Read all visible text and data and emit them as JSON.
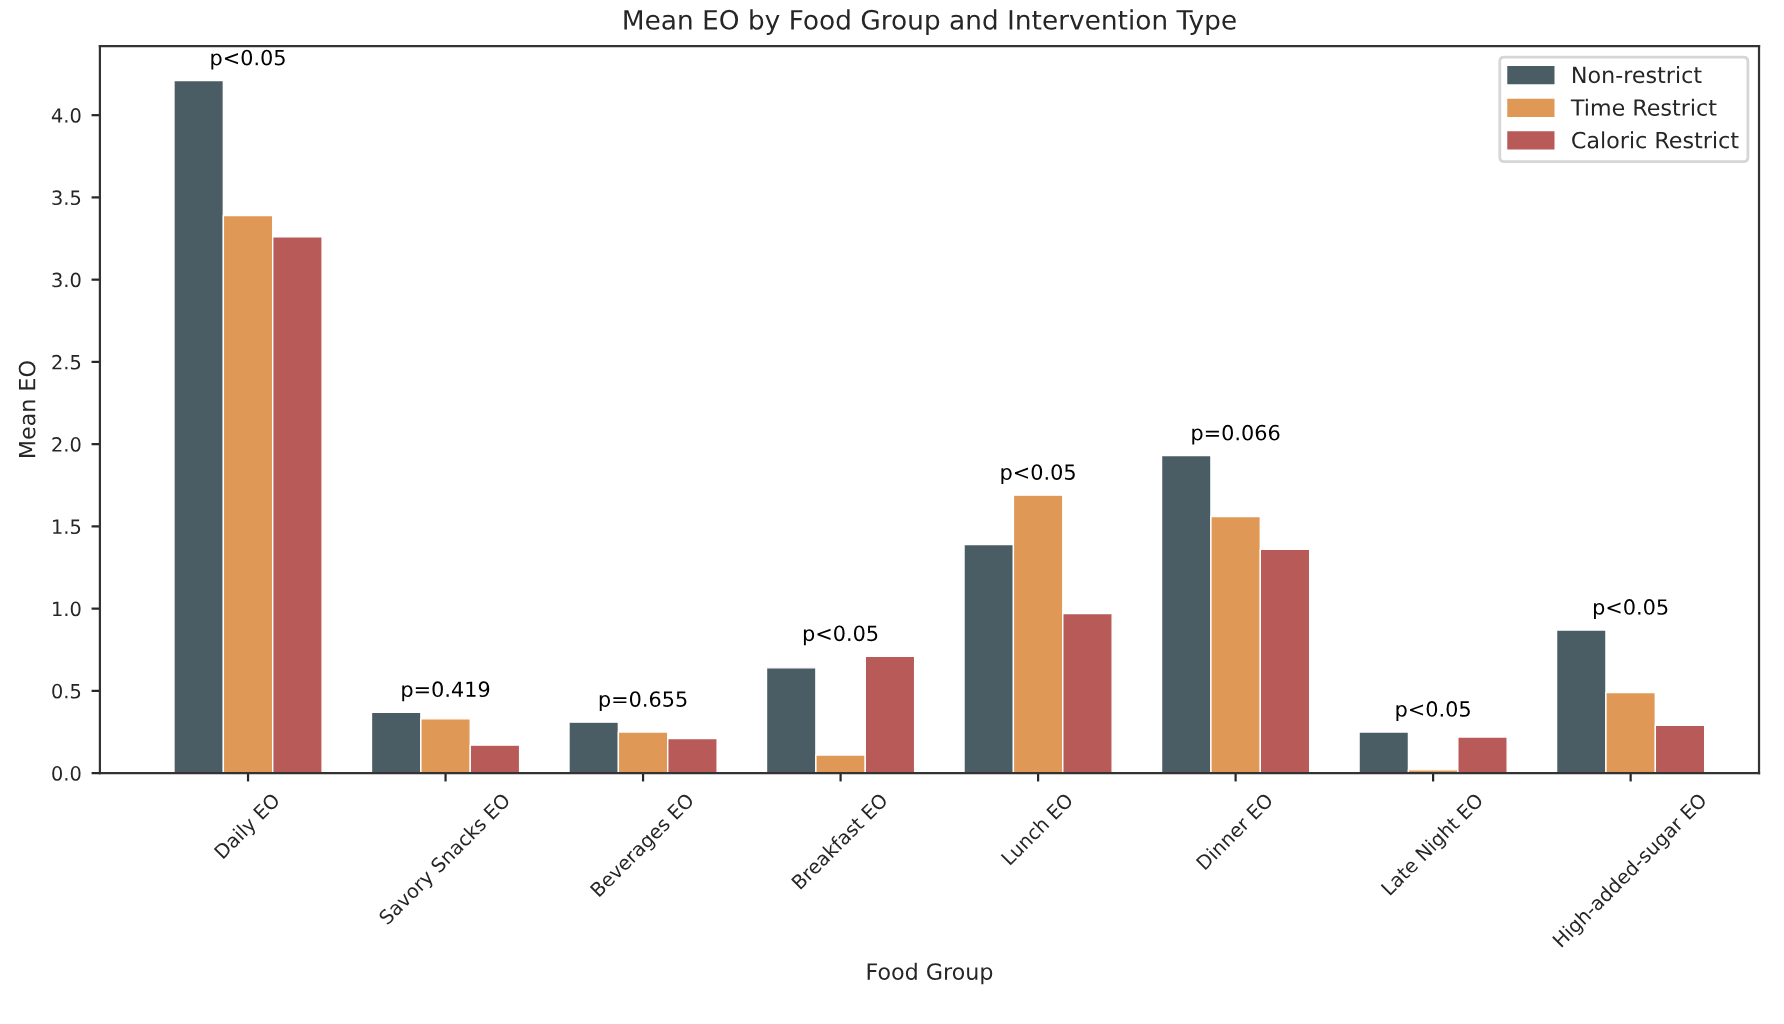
{
  "chart_data": {
    "type": "bar",
    "title": "Mean EO by Food Group and Intervention Type",
    "xlabel": "Food Group",
    "ylabel": "Mean EO",
    "categories": [
      "Daily EO",
      "Savory Snacks EO",
      "Beverages EO",
      "Breakfast EO",
      "Lunch EO",
      "Dinner EO",
      "Late Night EO",
      "High-added-sugar EO"
    ],
    "series": [
      {
        "name": "Non-restrict",
        "color": "#4a5d65",
        "values": [
          4.21,
          0.37,
          0.31,
          0.64,
          1.39,
          1.93,
          0.25,
          0.87
        ]
      },
      {
        "name": "Time Restrict",
        "color": "#e09856",
        "values": [
          3.39,
          0.33,
          0.25,
          0.11,
          1.69,
          1.56,
          0.02,
          0.49
        ]
      },
      {
        "name": "Caloric Restrict",
        "color": "#b85a58",
        "values": [
          3.26,
          0.17,
          0.21,
          0.71,
          0.97,
          1.36,
          0.22,
          0.29
        ]
      }
    ],
    "annotations": [
      "p<0.05",
      "p=0.419",
      "p=0.655",
      "p<0.05",
      "p<0.05",
      "p=0.066",
      "p<0.05",
      "p<0.05"
    ],
    "ylim": [
      0,
      4.42
    ],
    "yticks": [
      {
        "value": 0,
        "label": "0.0"
      },
      {
        "value": 0.5,
        "label": "0.5"
      },
      {
        "value": 1,
        "label": "1.0"
      },
      {
        "value": 1.5,
        "label": "1.5"
      },
      {
        "value": 2,
        "label": "2.0"
      },
      {
        "value": 2.5,
        "label": "2.5"
      },
      {
        "value": 3,
        "label": "3.0"
      },
      {
        "value": 3.5,
        "label": "3.5"
      },
      {
        "value": 4,
        "label": "4.0"
      }
    ],
    "grid": false,
    "legend": "top right"
  }
}
